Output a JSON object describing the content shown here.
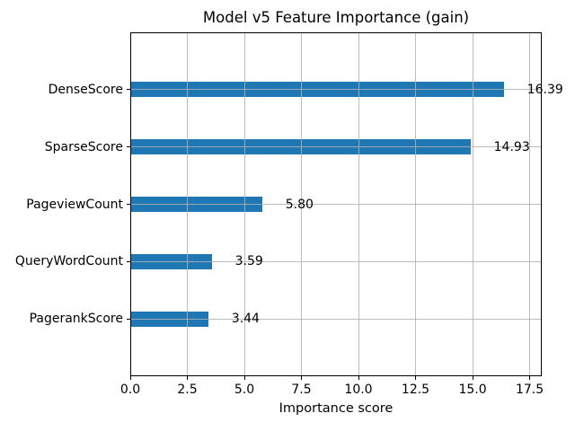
{
  "chart_data": {
    "type": "bar",
    "orientation": "horizontal",
    "title": "Model v5 Feature Importance (gain)",
    "xlabel": "Importance score",
    "ylabel": "",
    "categories": [
      "DenseScore",
      "SparseScore",
      "PageviewCount",
      "QueryWordCount",
      "PagerankScore"
    ],
    "values": [
      16.39,
      14.93,
      5.8,
      3.59,
      3.44
    ],
    "value_labels": [
      "16.39",
      "14.93",
      "5.80",
      "3.59",
      "3.44"
    ],
    "xlim": [
      0,
      18.03
    ],
    "xticks": [
      0,
      2.5,
      5,
      7.5,
      10,
      12.5,
      15,
      17.5
    ],
    "xtick_labels": [
      "0.0",
      "2.5",
      "5.0",
      "7.5",
      "10.0",
      "12.5",
      "15.0",
      "17.5"
    ],
    "grid": true,
    "legend": false,
    "bar_color": "#1f77b4",
    "grid_color": "#b0b0b0",
    "label_offset_data_units": 1.0
  }
}
